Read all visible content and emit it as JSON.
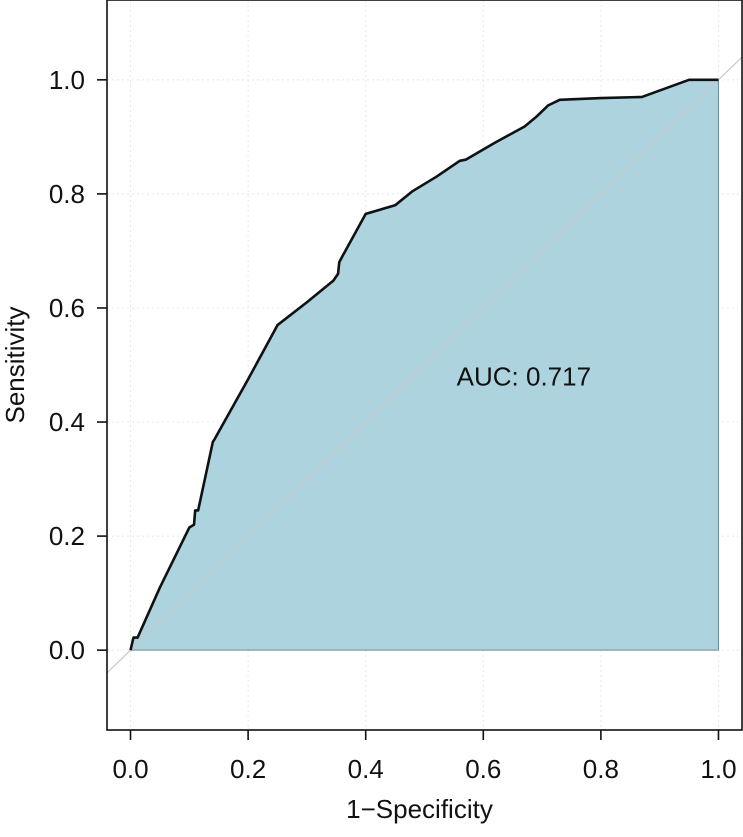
{
  "chart_data": {
    "type": "area",
    "title": "",
    "xlabel": "1−Specificity",
    "ylabel": "Sensitivity",
    "xlim": [
      -0.04,
      1.04
    ],
    "ylim": [
      -0.14,
      1.14
    ],
    "grid": true,
    "xticks": [
      0.0,
      0.2,
      0.4,
      0.6,
      0.8,
      1.0
    ],
    "yticks": [
      0.0,
      0.2,
      0.4,
      0.6,
      0.8,
      1.0
    ],
    "xtick_labels": [
      "0.0",
      "0.2",
      "0.4",
      "0.6",
      "0.8",
      "1.0"
    ],
    "ytick_labels": [
      "0.0",
      "0.2",
      "0.4",
      "0.6",
      "0.8",
      "1.0"
    ],
    "annotation": "AUC: 0.717",
    "annotation_position": [
      0.57,
      0.48
    ],
    "reference_line": [
      [
        -0.04,
        -0.04
      ],
      [
        1.04,
        1.04
      ]
    ],
    "series": [
      {
        "points": [
          [
            0.0,
            0.0
          ],
          [
            0.005,
            0.022
          ],
          [
            0.012,
            0.022
          ],
          [
            0.05,
            0.11
          ],
          [
            0.1,
            0.215
          ],
          [
            0.108,
            0.22
          ],
          [
            0.11,
            0.245
          ],
          [
            0.115,
            0.245
          ],
          [
            0.14,
            0.365
          ],
          [
            0.143,
            0.37
          ],
          [
            0.2,
            0.475
          ],
          [
            0.25,
            0.57
          ],
          [
            0.3,
            0.61
          ],
          [
            0.345,
            0.648
          ],
          [
            0.353,
            0.66
          ],
          [
            0.355,
            0.68
          ],
          [
            0.36,
            0.69
          ],
          [
            0.4,
            0.765
          ],
          [
            0.45,
            0.78
          ],
          [
            0.48,
            0.805
          ],
          [
            0.52,
            0.83
          ],
          [
            0.56,
            0.858
          ],
          [
            0.57,
            0.86
          ],
          [
            0.62,
            0.89
          ],
          [
            0.67,
            0.918
          ],
          [
            0.69,
            0.935
          ],
          [
            0.71,
            0.955
          ],
          [
            0.73,
            0.965
          ],
          [
            0.8,
            0.968
          ],
          [
            0.87,
            0.97
          ],
          [
            0.95,
            1.0
          ],
          [
            1.0,
            1.0
          ]
        ]
      }
    ],
    "colors": {
      "fill": "#add3df",
      "line": "#111111",
      "reference": "#c8c8c8",
      "grid": "#e8e8e8",
      "axis": "#111111"
    }
  }
}
